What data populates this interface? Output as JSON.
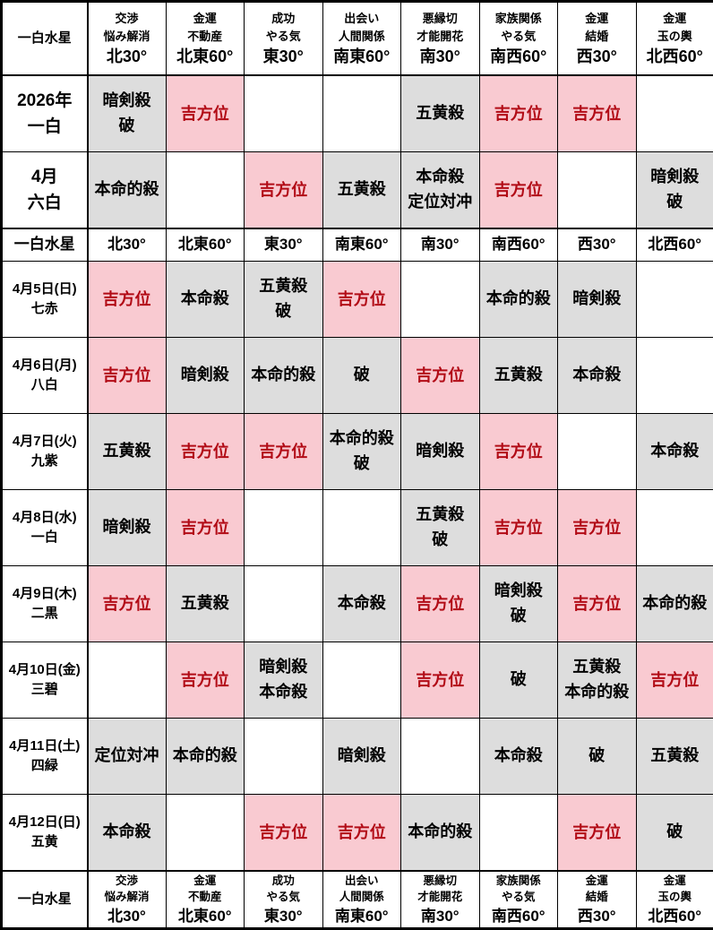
{
  "colors": {
    "good_bg": "#F9CAD1",
    "bad_bg": "#DDDDDD",
    "good_text": "#B20B16",
    "text": "#000000",
    "border": "#000000"
  },
  "table": {
    "corner_label": "一白水星",
    "columns": [
      {
        "benefit1": "交渉",
        "benefit2": "悩み解消",
        "direction": "北30°"
      },
      {
        "benefit1": "金運",
        "benefit2": "不動産",
        "direction": "北東60°"
      },
      {
        "benefit1": "成功",
        "benefit2": "やる気",
        "direction": "東30°"
      },
      {
        "benefit1": "出会い",
        "benefit2": "人間関係",
        "direction": "南東60°"
      },
      {
        "benefit1": "悪縁切",
        "benefit2": "才能開花",
        "direction": "南30°"
      },
      {
        "benefit1": "家族関係",
        "benefit2": "やる気",
        "direction": "南西60°"
      },
      {
        "benefit1": "金運",
        "benefit2": "結婚",
        "direction": "西30°"
      },
      {
        "benefit1": "金運",
        "benefit2": "玉の輿",
        "direction": "北西60°"
      }
    ],
    "good_label": "吉方位",
    "rows": [
      {
        "type": "period",
        "label_lines": [
          "2026年",
          "一白"
        ],
        "cells": [
          {
            "status": "bad",
            "lines": [
              "暗剣殺",
              "破"
            ]
          },
          {
            "status": "good",
            "lines": [
              "吉方位"
            ]
          },
          {
            "status": "empty",
            "lines": []
          },
          {
            "status": "empty",
            "lines": []
          },
          {
            "status": "bad",
            "lines": [
              "五黄殺"
            ]
          },
          {
            "status": "good",
            "lines": [
              "吉方位"
            ]
          },
          {
            "status": "good",
            "lines": [
              "吉方位"
            ]
          },
          {
            "status": "empty",
            "lines": []
          }
        ]
      },
      {
        "type": "period",
        "label_lines": [
          "4月",
          "六白"
        ],
        "thick_under": true,
        "cells": [
          {
            "status": "bad",
            "lines": [
              "本命的殺"
            ]
          },
          {
            "status": "empty",
            "lines": []
          },
          {
            "status": "good",
            "lines": [
              "吉方位"
            ]
          },
          {
            "status": "bad",
            "lines": [
              "五黄殺"
            ]
          },
          {
            "status": "bad",
            "lines": [
              "本命殺",
              "定位対冲"
            ]
          },
          {
            "status": "good",
            "lines": [
              "吉方位"
            ]
          },
          {
            "status": "empty",
            "lines": []
          },
          {
            "status": "bad",
            "lines": [
              "暗剣殺",
              "破"
            ]
          }
        ]
      },
      {
        "type": "subheader",
        "label_lines": [
          "一白水星"
        ]
      },
      {
        "type": "day",
        "label_lines": [
          "4月5日(日)",
          "七赤"
        ],
        "cells": [
          {
            "status": "good",
            "lines": [
              "吉方位"
            ]
          },
          {
            "status": "bad",
            "lines": [
              "本命殺"
            ]
          },
          {
            "status": "bad",
            "lines": [
              "五黄殺",
              "破"
            ]
          },
          {
            "status": "good",
            "lines": [
              "吉方位"
            ]
          },
          {
            "status": "empty",
            "lines": []
          },
          {
            "status": "bad",
            "lines": [
              "本命的殺"
            ]
          },
          {
            "status": "bad",
            "lines": [
              "暗剣殺"
            ]
          },
          {
            "status": "empty",
            "lines": []
          }
        ]
      },
      {
        "type": "day",
        "label_lines": [
          "4月6日(月)",
          "八白"
        ],
        "cells": [
          {
            "status": "good",
            "lines": [
              "吉方位"
            ]
          },
          {
            "status": "bad",
            "lines": [
              "暗剣殺"
            ]
          },
          {
            "status": "bad",
            "lines": [
              "本命的殺"
            ]
          },
          {
            "status": "bad",
            "lines": [
              "破"
            ]
          },
          {
            "status": "good",
            "lines": [
              "吉方位"
            ]
          },
          {
            "status": "bad",
            "lines": [
              "五黄殺"
            ]
          },
          {
            "status": "bad",
            "lines": [
              "本命殺"
            ]
          },
          {
            "status": "empty",
            "lines": []
          }
        ]
      },
      {
        "type": "day",
        "label_lines": [
          "4月7日(火)",
          "九紫"
        ],
        "cells": [
          {
            "status": "bad",
            "lines": [
              "五黄殺"
            ]
          },
          {
            "status": "good",
            "lines": [
              "吉方位"
            ]
          },
          {
            "status": "good",
            "lines": [
              "吉方位"
            ]
          },
          {
            "status": "bad",
            "lines": [
              "本命的殺",
              "破"
            ]
          },
          {
            "status": "bad",
            "lines": [
              "暗剣殺"
            ]
          },
          {
            "status": "good",
            "lines": [
              "吉方位"
            ]
          },
          {
            "status": "empty",
            "lines": []
          },
          {
            "status": "bad",
            "lines": [
              "本命殺"
            ]
          }
        ]
      },
      {
        "type": "day",
        "label_lines": [
          "4月8日(水)",
          "一白"
        ],
        "cells": [
          {
            "status": "bad",
            "lines": [
              "暗剣殺"
            ]
          },
          {
            "status": "good",
            "lines": [
              "吉方位"
            ]
          },
          {
            "status": "empty",
            "lines": []
          },
          {
            "status": "empty",
            "lines": []
          },
          {
            "status": "bad",
            "lines": [
              "五黄殺",
              "破"
            ]
          },
          {
            "status": "good",
            "lines": [
              "吉方位"
            ]
          },
          {
            "status": "good",
            "lines": [
              "吉方位"
            ]
          },
          {
            "status": "empty",
            "lines": []
          }
        ]
      },
      {
        "type": "day",
        "label_lines": [
          "4月9日(木)",
          "二黒"
        ],
        "cells": [
          {
            "status": "good",
            "lines": [
              "吉方位"
            ]
          },
          {
            "status": "bad",
            "lines": [
              "五黄殺"
            ]
          },
          {
            "status": "empty",
            "lines": []
          },
          {
            "status": "bad",
            "lines": [
              "本命殺"
            ]
          },
          {
            "status": "good",
            "lines": [
              "吉方位"
            ]
          },
          {
            "status": "bad",
            "lines": [
              "暗剣殺",
              "破"
            ]
          },
          {
            "status": "good",
            "lines": [
              "吉方位"
            ]
          },
          {
            "status": "bad",
            "lines": [
              "本命的殺"
            ]
          }
        ]
      },
      {
        "type": "day",
        "label_lines": [
          "4月10日(金)",
          "三碧"
        ],
        "cells": [
          {
            "status": "empty",
            "lines": []
          },
          {
            "status": "good",
            "lines": [
              "吉方位"
            ]
          },
          {
            "status": "bad",
            "lines": [
              "暗剣殺",
              "本命殺"
            ]
          },
          {
            "status": "empty",
            "lines": []
          },
          {
            "status": "good",
            "lines": [
              "吉方位"
            ]
          },
          {
            "status": "bad",
            "lines": [
              "破"
            ]
          },
          {
            "status": "bad",
            "lines": [
              "五黄殺",
              "本命的殺"
            ]
          },
          {
            "status": "good",
            "lines": [
              "吉方位"
            ]
          }
        ]
      },
      {
        "type": "day",
        "label_lines": [
          "4月11日(土)",
          "四緑"
        ],
        "cells": [
          {
            "status": "bad",
            "lines": [
              "定位対冲"
            ]
          },
          {
            "status": "bad",
            "lines": [
              "本命的殺"
            ]
          },
          {
            "status": "empty",
            "lines": []
          },
          {
            "status": "bad",
            "lines": [
              "暗剣殺"
            ]
          },
          {
            "status": "empty",
            "lines": []
          },
          {
            "status": "bad",
            "lines": [
              "本命殺"
            ]
          },
          {
            "status": "bad",
            "lines": [
              "破"
            ]
          },
          {
            "status": "bad",
            "lines": [
              "五黄殺"
            ]
          }
        ]
      },
      {
        "type": "day",
        "label_lines": [
          "4月12日(日)",
          "五黄"
        ],
        "cells": [
          {
            "status": "bad",
            "lines": [
              "本命殺"
            ]
          },
          {
            "status": "empty",
            "lines": []
          },
          {
            "status": "good",
            "lines": [
              "吉方位"
            ]
          },
          {
            "status": "good",
            "lines": [
              "吉方位"
            ]
          },
          {
            "status": "bad",
            "lines": [
              "本命的殺"
            ]
          },
          {
            "status": "empty",
            "lines": []
          },
          {
            "status": "good",
            "lines": [
              "吉方位"
            ]
          },
          {
            "status": "bad",
            "lines": [
              "破"
            ]
          }
        ]
      }
    ]
  }
}
